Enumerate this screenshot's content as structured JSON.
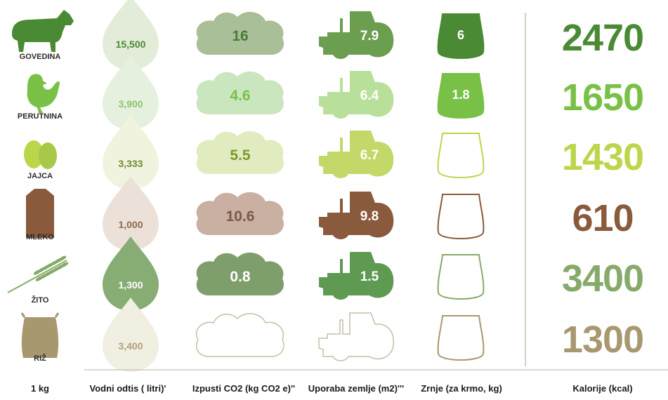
{
  "chart_data": {
    "type": "table",
    "headers": {
      "unit": "1 kg",
      "water": "Vodni odtis  ( litri)'",
      "co2": "Izpusti  CO2 (kg CO2 e)''",
      "land": "Uporaba zemlje (m2)'''",
      "grain": "Zrnje (za krmo, kg)",
      "kcal": "Kalorije (kcal)"
    },
    "rows": [
      {
        "food": "GOVEDINA",
        "icon": "cow-icon",
        "color": "#4a8a34",
        "water": "15,500",
        "co2": "16",
        "land": "7.9",
        "grain": "6",
        "kcal": "2470"
      },
      {
        "food": "PERUTNINA",
        "icon": "chicken-icon",
        "color": "#79c146",
        "water": "3,900",
        "co2": "4.6",
        "land": "6.4",
        "grain": "1.8",
        "kcal": "1650"
      },
      {
        "food": "JAJCA",
        "icon": "egg-icon",
        "color": "#bcd64c",
        "water": "3,333",
        "co2": "5.5",
        "land": "6.7",
        "grain": "",
        "kcal": "1430"
      },
      {
        "food": "MLEKO",
        "icon": "milk-carton-icon",
        "color": "#8a5a3c",
        "water": "1,000",
        "co2": "10.6",
        "land": "9.8",
        "grain": "",
        "kcal": "610"
      },
      {
        "food": "ŽITO",
        "icon": "wheat-icon",
        "color": "#86aa6a",
        "water": "1,300",
        "co2": "0.8",
        "land": "1.5",
        "grain": "",
        "kcal": "3400"
      },
      {
        "food": "RIŽ",
        "icon": "rice-sack-icon",
        "color": "#a89870",
        "water": "3,400",
        "co2": "",
        "land": "",
        "grain": "",
        "kcal": "1300"
      }
    ],
    "style": {
      "drop_fills": [
        "#e2ecd8",
        "#e6f0df",
        "#f0f4df",
        "#ece1d9",
        "#87ac74",
        "#f1eee2"
      ],
      "drop_text": [
        "#4a8a34",
        "#8fc46c",
        "#6e8a30",
        "#8a6a50",
        "#ffffff",
        "#b0a27a"
      ],
      "cloud_fills": [
        "#a9bf97",
        "#c9e6bf",
        "#e0ecc0",
        "#c9b0a2",
        "#7e9f6c",
        "none"
      ],
      "cloud_text": [
        "#4a7a3a",
        "#79c146",
        "#7a9a2a",
        "#7a5a48",
        "#ffffff",
        ""
      ],
      "tractor_fills": [
        "#6c9e50",
        "#b9e09b",
        "#c2d96a",
        "#8a5a3c",
        "#5e9a52",
        "none"
      ],
      "bag_fills": [
        "#4a8a34",
        "#79c146",
        "none",
        "none",
        "none",
        "none"
      ],
      "bag_strokes": [
        "#4a8a34",
        "#79c146",
        "#bcd64c",
        "#8a5a3c",
        "#86aa6a",
        "#a89870"
      ]
    }
  }
}
